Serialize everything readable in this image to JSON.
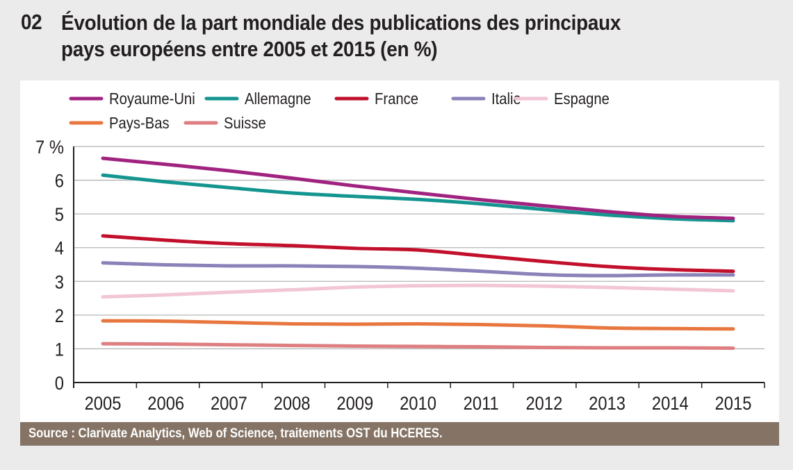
{
  "header": {
    "number": "02",
    "title_line1": "Évolution de la part mondiale des publications des principaux",
    "title_line2": "pays européens entre 2005 et 2015 (en %)"
  },
  "source": "Source : Clarivate Analytics, Web of Science, traitements OST du HCERES.",
  "chart_data": {
    "type": "line",
    "title": "Évolution de la part mondiale des publications des principaux pays européens entre 2005 et 2015 (en %)",
    "xlabel": "",
    "ylabel": "",
    "x": [
      "2005",
      "2006",
      "2007",
      "2008",
      "2009",
      "2010",
      "2011",
      "2012",
      "2013",
      "2014",
      "2015"
    ],
    "ylim": [
      0,
      7
    ],
    "yticks": [
      0,
      1,
      2,
      3,
      4,
      5,
      6,
      7
    ],
    "ytick_labels": [
      "0",
      "1",
      "2",
      "3",
      "4",
      "5",
      "6",
      "7 %"
    ],
    "grid": true,
    "legend_position": "top-left",
    "series": [
      {
        "name": "Royaume-Uni",
        "color": "#a0237f",
        "values": [
          6.65,
          6.47,
          6.28,
          6.06,
          5.83,
          5.62,
          5.42,
          5.24,
          5.07,
          4.93,
          4.87
        ]
      },
      {
        "name": "Allemagne",
        "color": "#149590",
        "values": [
          6.15,
          5.95,
          5.78,
          5.62,
          5.52,
          5.43,
          5.3,
          5.13,
          4.97,
          4.86,
          4.8
        ]
      },
      {
        "name": "France",
        "color": "#c2102c",
        "values": [
          4.35,
          4.22,
          4.12,
          4.06,
          3.98,
          3.93,
          3.76,
          3.59,
          3.44,
          3.35,
          3.3
        ]
      },
      {
        "name": "Italie",
        "color": "#8a82b8",
        "values": [
          3.55,
          3.49,
          3.46,
          3.46,
          3.44,
          3.39,
          3.3,
          3.2,
          3.17,
          3.19,
          3.19
        ]
      },
      {
        "name": "Espagne",
        "color": "#f2c6d7",
        "values": [
          2.54,
          2.6,
          2.68,
          2.75,
          2.83,
          2.87,
          2.88,
          2.86,
          2.82,
          2.77,
          2.72
        ]
      },
      {
        "name": "Pays-Bas",
        "color": "#e8773f",
        "values": [
          1.83,
          1.82,
          1.78,
          1.74,
          1.73,
          1.74,
          1.72,
          1.68,
          1.62,
          1.6,
          1.59
        ]
      },
      {
        "name": "Suisse",
        "color": "#de7e80",
        "values": [
          1.15,
          1.14,
          1.12,
          1.1,
          1.08,
          1.07,
          1.06,
          1.04,
          1.03,
          1.03,
          1.02
        ]
      }
    ]
  }
}
